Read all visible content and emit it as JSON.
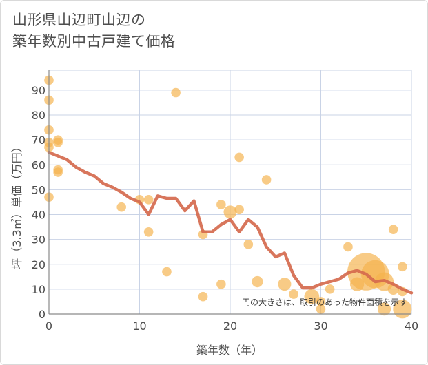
{
  "title_line1": "山形県山辺町山辺の",
  "title_line2": "築年数別中古戸建て価格",
  "chart_data": {
    "type": "scatter",
    "title": "山形県山辺町山辺の築年数別中古戸建て価格",
    "xlabel": "築年数（年）",
    "ylabel": "坪（3.3㎡）単価（万円）",
    "xlim": [
      0,
      40
    ],
    "ylim": [
      0,
      98
    ],
    "xticks": [
      "0",
      "10",
      "20",
      "30",
      "40"
    ],
    "yticks": [
      "0",
      "10",
      "20",
      "30",
      "40",
      "50",
      "60",
      "70",
      "80",
      "90"
    ],
    "grid": true,
    "note": "円の大きさは、取引のあった物件面積を示す",
    "colors": {
      "bubble": "#f4b24c",
      "line": "#d56a4e",
      "grid": "#c9d3e6"
    },
    "points": [
      {
        "x": 0,
        "y": 94,
        "s": 1
      },
      {
        "x": 0,
        "y": 86,
        "s": 1
      },
      {
        "x": 0,
        "y": 74,
        "s": 1
      },
      {
        "x": 0,
        "y": 69,
        "s": 1
      },
      {
        "x": 0,
        "y": 67,
        "s": 1
      },
      {
        "x": 0,
        "y": 47,
        "s": 1
      },
      {
        "x": 1,
        "y": 70,
        "s": 1
      },
      {
        "x": 1,
        "y": 69,
        "s": 1
      },
      {
        "x": 1,
        "y": 58,
        "s": 1
      },
      {
        "x": 1,
        "y": 57,
        "s": 1
      },
      {
        "x": 8,
        "y": 43,
        "s": 1
      },
      {
        "x": 10,
        "y": 46,
        "s": 1
      },
      {
        "x": 11,
        "y": 46,
        "s": 1
      },
      {
        "x": 11,
        "y": 33,
        "s": 1
      },
      {
        "x": 13,
        "y": 17,
        "s": 1
      },
      {
        "x": 14,
        "y": 89,
        "s": 1
      },
      {
        "x": 17,
        "y": 32,
        "s": 1
      },
      {
        "x": 17,
        "y": 7,
        "s": 1
      },
      {
        "x": 19,
        "y": 44,
        "s": 1
      },
      {
        "x": 19,
        "y": 12,
        "s": 1
      },
      {
        "x": 20,
        "y": 41,
        "s": 1.4
      },
      {
        "x": 21,
        "y": 63,
        "s": 1
      },
      {
        "x": 21,
        "y": 42,
        "s": 1
      },
      {
        "x": 22,
        "y": 28,
        "s": 1
      },
      {
        "x": 23,
        "y": 13,
        "s": 1.2
      },
      {
        "x": 24,
        "y": 54,
        "s": 1
      },
      {
        "x": 26,
        "y": 12,
        "s": 1.4
      },
      {
        "x": 27,
        "y": 8,
        "s": 1
      },
      {
        "x": 29,
        "y": 7,
        "s": 1.6
      },
      {
        "x": 30,
        "y": 2,
        "s": 1
      },
      {
        "x": 30,
        "y": 5,
        "s": 1
      },
      {
        "x": 31,
        "y": 10,
        "s": 1
      },
      {
        "x": 33,
        "y": 27,
        "s": 1
      },
      {
        "x": 34,
        "y": 12,
        "s": 1.5
      },
      {
        "x": 35,
        "y": 17,
        "s": 4.0
      },
      {
        "x": 36,
        "y": 16,
        "s": 3.0
      },
      {
        "x": 37,
        "y": 13,
        "s": 2.0
      },
      {
        "x": 37,
        "y": 2,
        "s": 1.4
      },
      {
        "x": 38,
        "y": 34,
        "s": 1
      },
      {
        "x": 38,
        "y": 10,
        "s": 1.2
      },
      {
        "x": 39,
        "y": 19,
        "s": 1
      },
      {
        "x": 39,
        "y": 2,
        "s": 2.0
      },
      {
        "x": 39,
        "y": 9,
        "s": 1
      }
    ],
    "trend": {
      "x": [
        0,
        1,
        2,
        3,
        4,
        5,
        6,
        7,
        8,
        9,
        10,
        11,
        12,
        13,
        14,
        15,
        16,
        17,
        18,
        19,
        20,
        21,
        22,
        23,
        24,
        25,
        26,
        27,
        28,
        29,
        30,
        31,
        32,
        33,
        34,
        35,
        36,
        37,
        38,
        39,
        40
      ],
      "y": [
        65,
        63.5,
        62,
        59,
        57,
        55.5,
        52.5,
        51,
        49,
        46.5,
        45,
        40,
        47.5,
        46.5,
        46.5,
        41.5,
        45.5,
        33,
        33,
        36,
        38,
        33,
        38,
        35,
        27,
        23,
        24.5,
        15.5,
        10.5,
        10.5,
        12,
        13,
        14,
        16.5,
        17.5,
        16,
        13,
        13.5,
        12,
        10,
        8.5
      ]
    }
  }
}
